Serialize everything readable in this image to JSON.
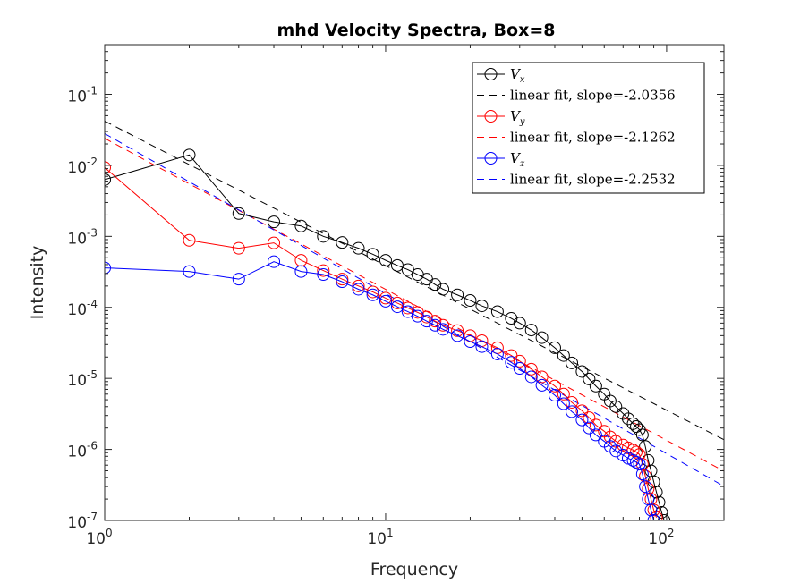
{
  "chart_data": {
    "type": "line",
    "title": "mhd Velocity Spectra, Box=8",
    "xlabel": "Frequency",
    "ylabel": "Intensity",
    "xscale": "log",
    "yscale": "log",
    "xlim": [
      1,
      160
    ],
    "ylim": [
      1e-07,
      0.5
    ],
    "x_ticks": [
      {
        "base": "10",
        "exp": "0",
        "value": 1
      },
      {
        "base": "10",
        "exp": "1",
        "value": 10
      },
      {
        "base": "10",
        "exp": "2",
        "value": 100
      }
    ],
    "y_ticks": [
      {
        "base": "10",
        "exp": "-7",
        "value": 1e-07
      },
      {
        "base": "10",
        "exp": "-6",
        "value": 1e-06
      },
      {
        "base": "10",
        "exp": "-5",
        "value": 1e-05
      },
      {
        "base": "10",
        "exp": "-4",
        "value": 0.0001
      },
      {
        "base": "10",
        "exp": "-3",
        "value": 0.001
      },
      {
        "base": "10",
        "exp": "-2",
        "value": 0.01
      },
      {
        "base": "10",
        "exp": "-1",
        "value": 0.1
      }
    ],
    "legend_position": "top-right",
    "grid": false,
    "series": [
      {
        "key": "vx",
        "base": "V",
        "sub": "x",
        "color": "#000000",
        "points": [
          [
            1,
            0.0063
          ],
          [
            2,
            0.014
          ],
          [
            3,
            0.0021
          ],
          [
            4,
            0.0016
          ],
          [
            5,
            0.0014
          ],
          [
            6,
            0.001
          ],
          [
            7,
            0.00082
          ],
          [
            8,
            0.00068
          ],
          [
            9,
            0.00056
          ],
          [
            10,
            0.00046
          ],
          [
            11,
            0.00039
          ],
          [
            12,
            0.00034
          ],
          [
            13,
            0.00029
          ],
          [
            14,
            0.00025
          ],
          [
            15,
            0.00021
          ],
          [
            16,
            0.00018
          ],
          [
            18,
            0.00015
          ],
          [
            20,
            0.000125
          ],
          [
            22,
            0.000105
          ],
          [
            25,
            8.7e-05
          ],
          [
            28,
            7e-05
          ],
          [
            30,
            6e-05
          ],
          [
            33,
            4.8e-05
          ],
          [
            36,
            3.75e-05
          ],
          [
            40,
            2.7e-05
          ],
          [
            43,
            2.1e-05
          ],
          [
            46,
            1.65e-05
          ],
          [
            50,
            1.25e-05
          ],
          [
            53,
            9.8e-06
          ],
          [
            56,
            7.8e-06
          ],
          [
            60,
            6e-06
          ],
          [
            63,
            4.8e-06
          ],
          [
            66,
            4e-06
          ],
          [
            70,
            3.2e-06
          ],
          [
            73,
            2.7e-06
          ],
          [
            76,
            2.3e-06
          ],
          [
            78,
            2.1e-06
          ],
          [
            80,
            1.9e-06
          ],
          [
            82,
            1.6e-06
          ],
          [
            84,
            1.1e-06
          ],
          [
            86,
            7e-07
          ],
          [
            88,
            5e-07
          ],
          [
            90,
            3.5e-07
          ],
          [
            92,
            2.5e-07
          ],
          [
            94,
            1.8e-07
          ],
          [
            96,
            1.3e-07
          ],
          [
            98,
            1e-07
          ]
        ]
      },
      {
        "key": "vxfit",
        "label": "linear fit, slope=-2.0356",
        "color": "#000000",
        "intercept": 0.042,
        "slope": -2.0356
      },
      {
        "key": "vy",
        "base": "V",
        "sub": "y",
        "color": "#ff0000",
        "points": [
          [
            1,
            0.0093
          ],
          [
            2,
            0.00088
          ],
          [
            3,
            0.00068
          ],
          [
            4,
            0.00081
          ],
          [
            5,
            0.00046
          ],
          [
            6,
            0.00033
          ],
          [
            7,
            0.00025
          ],
          [
            8,
            0.0002
          ],
          [
            9,
            0.000165
          ],
          [
            10,
            0.000135
          ],
          [
            11,
            0.000115
          ],
          [
            12,
            9.8e-05
          ],
          [
            13,
            8.5e-05
          ],
          [
            14,
            7.3e-05
          ],
          [
            15,
            6.4e-05
          ],
          [
            16,
            5.6e-05
          ],
          [
            18,
            4.7e-05
          ],
          [
            20,
            4e-05
          ],
          [
            22,
            3.4e-05
          ],
          [
            25,
            2.7e-05
          ],
          [
            28,
            2.1e-05
          ],
          [
            30,
            1.75e-05
          ],
          [
            33,
            1.35e-05
          ],
          [
            36,
            1.05e-05
          ],
          [
            40,
            7.8e-06
          ],
          [
            43,
            6e-06
          ],
          [
            46,
            4.6e-06
          ],
          [
            50,
            3.5e-06
          ],
          [
            53,
            2.8e-06
          ],
          [
            56,
            2.2e-06
          ],
          [
            60,
            1.8e-06
          ],
          [
            63,
            1.5e-06
          ],
          [
            66,
            1.3e-06
          ],
          [
            70,
            1.15e-06
          ],
          [
            73,
            1.05e-06
          ],
          [
            76,
            9.8e-07
          ],
          [
            78,
            9.2e-07
          ],
          [
            80,
            8.5e-07
          ],
          [
            82,
            6.2e-07
          ],
          [
            84,
            4.2e-07
          ],
          [
            86,
            2.8e-07
          ],
          [
            88,
            2e-07
          ],
          [
            90,
            1.4e-07
          ],
          [
            92,
            1.1e-07
          ]
        ]
      },
      {
        "key": "vyfit",
        "label": "linear fit, slope=-2.1262",
        "color": "#ff0000",
        "intercept": 0.024,
        "slope": -2.1262
      },
      {
        "key": "vz",
        "base": "V",
        "sub": "z",
        "color": "#0000ff",
        "points": [
          [
            1,
            0.00036
          ],
          [
            2,
            0.00032
          ],
          [
            3,
            0.00025
          ],
          [
            4,
            0.00044
          ],
          [
            5,
            0.00032
          ],
          [
            6,
            0.00029
          ],
          [
            7,
            0.00023
          ],
          [
            8,
            0.00018
          ],
          [
            9,
            0.00015
          ],
          [
            10,
            0.000122
          ],
          [
            11,
            0.000102
          ],
          [
            12,
            8.7e-05
          ],
          [
            13,
            7.5e-05
          ],
          [
            14,
            6.4e-05
          ],
          [
            15,
            5.6e-05
          ],
          [
            16,
            4.9e-05
          ],
          [
            18,
            4e-05
          ],
          [
            20,
            3.3e-05
          ],
          [
            22,
            2.8e-05
          ],
          [
            25,
            2.2e-05
          ],
          [
            28,
            1.68e-05
          ],
          [
            30,
            1.38e-05
          ],
          [
            33,
            1.05e-05
          ],
          [
            36,
            8e-06
          ],
          [
            40,
            5.8e-06
          ],
          [
            43,
            4.4e-06
          ],
          [
            46,
            3.4e-06
          ],
          [
            50,
            2.6e-06
          ],
          [
            53,
            2e-06
          ],
          [
            56,
            1.6e-06
          ],
          [
            60,
            1.3e-06
          ],
          [
            63,
            1.1e-06
          ],
          [
            66,
            9.5e-07
          ],
          [
            70,
            8.3e-07
          ],
          [
            73,
            7.5e-07
          ],
          [
            76,
            7e-07
          ],
          [
            78,
            6.6e-07
          ],
          [
            80,
            6.2e-07
          ],
          [
            82,
            4.5e-07
          ],
          [
            84,
            3e-07
          ],
          [
            86,
            2e-07
          ],
          [
            88,
            1.4e-07
          ],
          [
            90,
            1e-07
          ]
        ]
      },
      {
        "key": "vzfit",
        "label": "linear fit, slope=-2.2532",
        "color": "#0000ff",
        "intercept": 0.028,
        "slope": -2.2532
      }
    ]
  }
}
